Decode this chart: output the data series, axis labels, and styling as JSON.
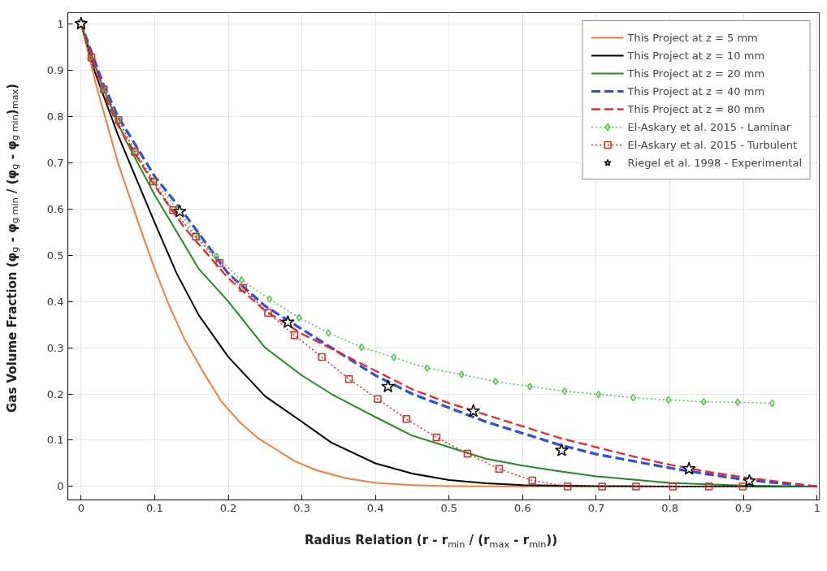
{
  "chart_data": {
    "type": "line",
    "xlabel": "Radius Relation (r - r$_{min}$ / (r$_{max}$ - r$_{min}$))",
    "ylabel": "Gas Volume Fraction (φ$_{g}$ - φ$_{g min}$ / (φ$_{g}$ - φ$_{g min}$)$_{max}$)",
    "xlim": [
      -0.018,
      1.003
    ],
    "ylim": [
      -0.029,
      1.024
    ],
    "xticks": [
      0,
      0.1,
      0.2,
      0.3,
      0.4,
      0.5,
      0.6,
      0.7,
      0.8,
      0.9,
      1
    ],
    "yticks": [
      0,
      0.1,
      0.2,
      0.3,
      0.4,
      0.5,
      0.6,
      0.7,
      0.8,
      0.9,
      1
    ],
    "grid": true,
    "legend": "top right",
    "series": [
      {
        "name": "This Project at z = 5 mm",
        "color": "#f07f3c",
        "line_style": "solid",
        "marker": "none",
        "x": [
          0,
          0.02,
          0.05,
          0.08,
          0.1,
          0.12,
          0.14,
          0.165,
          0.19,
          0.215,
          0.24,
          0.27,
          0.29,
          0.32,
          0.36,
          0.4,
          0.45,
          0.5,
          0.6,
          0.8,
          1
        ],
        "values": [
          1,
          0.87,
          0.7,
          0.56,
          0.47,
          0.39,
          0.32,
          0.25,
          0.185,
          0.14,
          0.105,
          0.075,
          0.055,
          0.035,
          0.018,
          0.008,
          0.003,
          0.001,
          0,
          0,
          0
        ]
      },
      {
        "name": "This Project at z = 10 mm",
        "color": "#000000",
        "line_style": "solid",
        "marker": "none",
        "x": [
          0,
          0.02,
          0.05,
          0.1,
          0.13,
          0.16,
          0.2,
          0.25,
          0.3,
          0.34,
          0.4,
          0.45,
          0.5,
          0.55,
          0.6,
          0.7,
          0.8,
          1
        ],
        "values": [
          1,
          0.89,
          0.76,
          0.57,
          0.46,
          0.37,
          0.28,
          0.195,
          0.14,
          0.095,
          0.05,
          0.028,
          0.014,
          0.007,
          0.003,
          0.001,
          0,
          0
        ]
      },
      {
        "name": "This Project at z = 20 mm",
        "color": "#1e8c1e",
        "line_style": "solid",
        "marker": "none",
        "x": [
          0,
          0.03,
          0.06,
          0.1,
          0.13,
          0.16,
          0.2,
          0.25,
          0.3,
          0.34,
          0.4,
          0.45,
          0.5,
          0.55,
          0.6,
          0.65,
          0.7,
          0.75,
          0.8,
          0.85,
          0.9,
          1
        ],
        "values": [
          1,
          0.86,
          0.75,
          0.63,
          0.55,
          0.47,
          0.4,
          0.3,
          0.24,
          0.2,
          0.15,
          0.11,
          0.085,
          0.06,
          0.045,
          0.033,
          0.022,
          0.015,
          0.008,
          0.005,
          0.002,
          0
        ]
      },
      {
        "name": "This Project at z = 40 mm",
        "color": "#2c4ce8",
        "line_style": "dashed",
        "marker": "none",
        "x": [
          0,
          0.03,
          0.05,
          0.1,
          0.14,
          0.2,
          0.25,
          0.3,
          0.35,
          0.4,
          0.45,
          0.5,
          0.55,
          0.6,
          0.65,
          0.7,
          0.75,
          0.8,
          0.85,
          0.9,
          0.95,
          1
        ],
        "values": [
          1,
          0.87,
          0.8,
          0.67,
          0.59,
          0.46,
          0.39,
          0.34,
          0.29,
          0.24,
          0.2,
          0.17,
          0.14,
          0.115,
          0.09,
          0.07,
          0.055,
          0.04,
          0.027,
          0.015,
          0.007,
          0
        ]
      },
      {
        "name": "This Project at z = 80 mm",
        "color": "#e8262b",
        "line_style": "dashed",
        "marker": "none",
        "x": [
          0,
          0.03,
          0.05,
          0.1,
          0.14,
          0.2,
          0.25,
          0.3,
          0.35,
          0.4,
          0.45,
          0.5,
          0.55,
          0.6,
          0.65,
          0.7,
          0.75,
          0.8,
          0.85,
          0.9,
          0.95,
          1
        ],
        "values": [
          1,
          0.85,
          0.78,
          0.65,
          0.56,
          0.45,
          0.38,
          0.33,
          0.29,
          0.25,
          0.21,
          0.18,
          0.155,
          0.13,
          0.105,
          0.085,
          0.065,
          0.047,
          0.032,
          0.02,
          0.01,
          0
        ]
      },
      {
        "name": "El-Askary et al. 2015 - Laminar",
        "type": "line",
        "color": "#52c452",
        "line_style": "dotted",
        "marker": "diamond",
        "x": [
          0,
          0.012,
          0.03,
          0.052,
          0.073,
          0.1,
          0.13,
          0.158,
          0.184,
          0.218,
          0.256,
          0.296,
          0.336,
          0.381,
          0.425,
          0.47,
          0.517,
          0.563,
          0.61,
          0.657,
          0.703,
          0.75,
          0.798,
          0.846,
          0.892,
          0.939
        ],
        "values": [
          1,
          0.925,
          0.86,
          0.79,
          0.725,
          0.66,
          0.6,
          0.54,
          0.497,
          0.446,
          0.405,
          0.365,
          0.332,
          0.301,
          0.279,
          0.256,
          0.242,
          0.227,
          0.216,
          0.206,
          0.199,
          0.192,
          0.187,
          0.183,
          0.182,
          0.18
        ]
      },
      {
        "name": "El-Askary et al. 2015 - Turbulent",
        "type": "line",
        "color": "#d42a2a",
        "line_style": "dotted",
        "marker": "square",
        "x": [
          0,
          0.014,
          0.031,
          0.051,
          0.073,
          0.098,
          0.125,
          0.156,
          0.188,
          0.22,
          0.254,
          0.29,
          0.327,
          0.364,
          0.403,
          0.442,
          0.483,
          0.525,
          0.568,
          0.613,
          0.661,
          0.708,
          0.754,
          0.804,
          0.853,
          0.899
        ],
        "values": [
          1,
          0.927,
          0.858,
          0.792,
          0.723,
          0.659,
          0.597,
          0.54,
          0.483,
          0.429,
          0.375,
          0.327,
          0.28,
          0.232,
          0.189,
          0.146,
          0.106,
          0.071,
          0.038,
          0.013,
          0,
          0,
          0,
          0,
          0,
          0
        ]
      },
      {
        "name": "Riegel et al. 1998 - Experimental",
        "type": "scatter",
        "color": "#000000",
        "marker": "star",
        "x": [
          0,
          0.134,
          0.281,
          0.417,
          0.533,
          0.653,
          0.826,
          0.908
        ],
        "values": [
          1,
          0.594,
          0.355,
          0.216,
          0.163,
          0.078,
          0.038,
          0.012
        ]
      }
    ]
  }
}
